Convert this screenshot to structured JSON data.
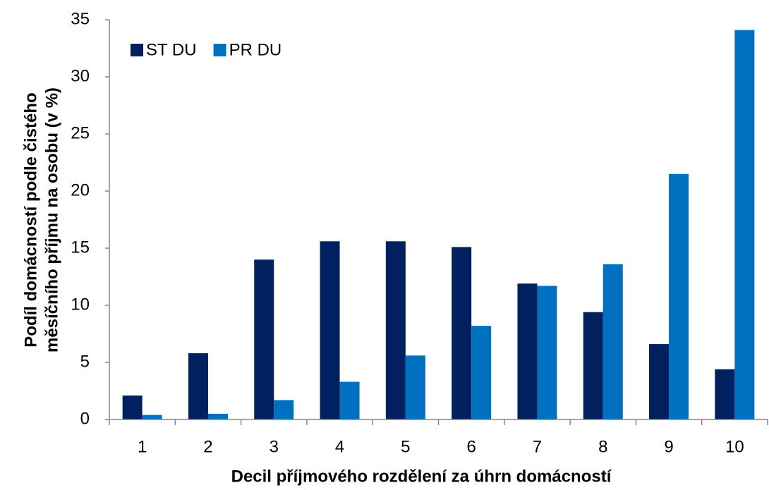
{
  "chart_data": {
    "type": "bar",
    "ylabel": [
      "Podíl domácností podle čistého",
      "měsíčního příjmu na osobu (v %)"
    ],
    "xlabel": "Decil příjmového rozdělení za úhrn domácností",
    "categories": [
      "1",
      "2",
      "3",
      "4",
      "5",
      "6",
      "7",
      "8",
      "9",
      "10"
    ],
    "series": [
      {
        "name": "ST DU",
        "color": "#002060",
        "values": [
          2.1,
          5.8,
          14.0,
          15.6,
          15.6,
          15.1,
          11.9,
          9.4,
          6.6,
          4.4
        ]
      },
      {
        "name": "PR DU",
        "color": "#0070c0",
        "values": [
          0.4,
          0.5,
          1.7,
          3.3,
          5.6,
          8.2,
          11.7,
          13.6,
          21.5,
          34.1
        ]
      }
    ],
    "ylim": [
      0,
      35
    ],
    "yticks": [
      0,
      5,
      10,
      15,
      20,
      25,
      30,
      35
    ],
    "grid": false,
    "legend": "top-left"
  }
}
